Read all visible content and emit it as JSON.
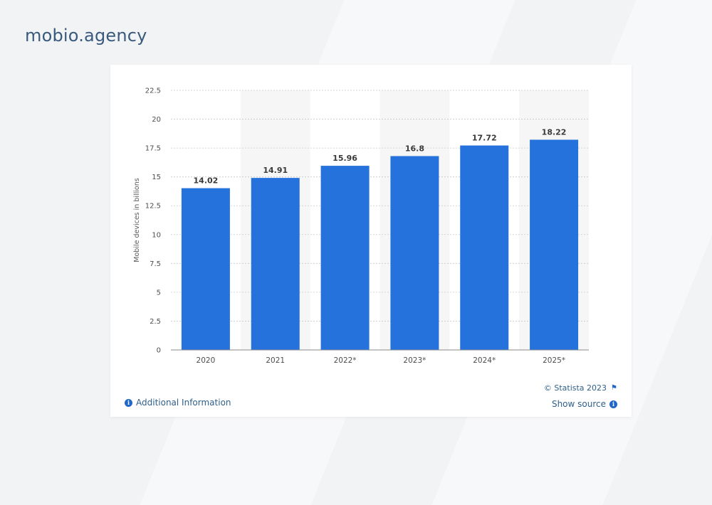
{
  "brand": "mobio.agency",
  "colors": {
    "bar": "#2672dc",
    "band": "#f6f6f7",
    "grid": "#c9c9c9",
    "text": "#4d4d4d"
  },
  "chart_data": {
    "type": "bar",
    "title": "",
    "xlabel": "",
    "ylabel": "Mobile devices in billions",
    "categories": [
      "2020",
      "2021",
      "2022*",
      "2023*",
      "2024*",
      "2025*"
    ],
    "values": [
      14.02,
      14.91,
      15.96,
      16.8,
      17.72,
      18.22
    ],
    "ylim": [
      0,
      22.5
    ],
    "yticks": [
      "0",
      "2.5",
      "5",
      "7.5",
      "10",
      "12.5",
      "15",
      "17.5",
      "20",
      "22.5"
    ],
    "data_labels": [
      "14.02",
      "14.91",
      "15.96",
      "16.8",
      "17.72",
      "18.22"
    ],
    "grid": true,
    "legend": "none"
  },
  "footer": {
    "copyright": "© Statista 2023",
    "additional_info": "Additional Information",
    "show_source": "Show source",
    "info_glyph": "i",
    "flag_glyph": "⚑"
  },
  "icons": [
    "info-icon",
    "flag-icon"
  ]
}
